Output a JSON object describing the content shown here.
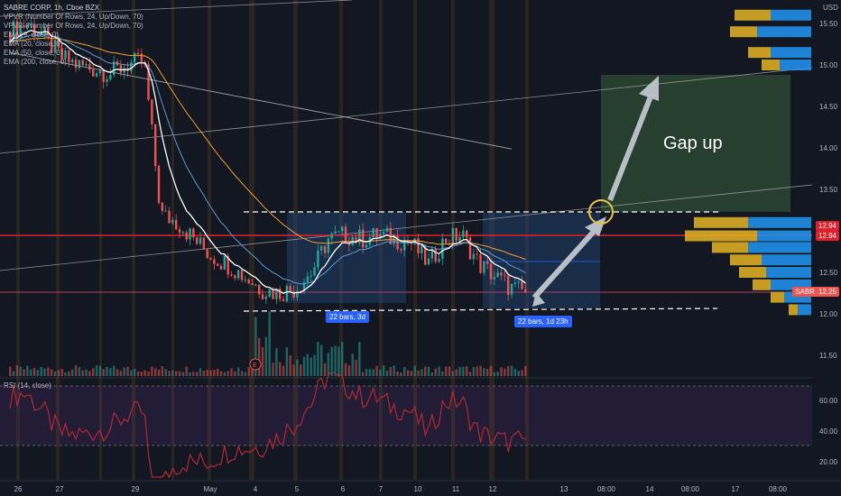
{
  "legend": {
    "symbol": "SABRE CORP, 1h, Cboe BZX",
    "vpvr1": "VPVR (Number Of Rows, 24, Up/Down, 70)",
    "vpvr2": "VPVR (Number Of Rows, 24, Up/Down, 70)",
    "ema9": "EMA (9, close, 0)",
    "ema20": "EMA (20, close, 0)",
    "ema50": "EMA (50, close, 0)",
    "ema200": "EMA (200, close, 0)"
  },
  "rsi_label": "RSI (14, close)",
  "annotation": "Gap up",
  "badges": {
    "b1": "22 bars, 3d",
    "b2": "22 bars, 1d 23h"
  },
  "price_tags": {
    "t1": "12.94",
    "t2": "12.94",
    "t3": "12.25",
    "t3_symbol": "SABR"
  },
  "colors": {
    "up": "#26a69a",
    "down": "#ef5350",
    "accent": "#2962ff",
    "ema9": "#ffffff",
    "ema20": "#5b9bd5",
    "ema50": "#f0a030",
    "ema200": "#9e9e9e",
    "rsi": "#b22833"
  },
  "chart_data": {
    "type": "candlestick",
    "y_ticks": [
      15.5,
      15.0,
      14.5,
      14.0,
      13.5,
      13.0,
      12.5,
      12.0,
      11.5
    ],
    "ylim": [
      11.5,
      15.5
    ],
    "rsi_ticks": [
      60.0,
      40.0,
      20.0
    ],
    "x_ticks": [
      "26",
      "27",
      "29",
      "May",
      "4",
      "5",
      "6",
      "7",
      "10",
      "11",
      "12",
      "13",
      "08:00",
      "14",
      "08:00",
      "17",
      "08:00"
    ],
    "close_path": [
      15.4,
      15.5,
      15.35,
      15.1,
      15.0,
      14.95,
      14.9,
      15.0,
      15.05,
      13.2,
      13.1,
      12.9,
      12.7,
      12.6,
      12.45,
      12.3,
      12.25,
      12.3,
      12.5,
      12.9,
      12.95,
      12.9,
      12.95,
      12.9,
      12.85,
      12.6,
      12.9,
      12.95,
      12.6,
      12.45,
      12.3,
      12.25
    ],
    "levels": {
      "range_high": 13.2,
      "range_low": 12.05,
      "red_line": 12.94,
      "pink_line": 12.25
    },
    "volume_profile": [
      {
        "price": 15.6,
        "up": 40,
        "down": 45
      },
      {
        "price": 15.4,
        "up": 30,
        "down": 60
      },
      {
        "price": 15.15,
        "up": 25,
        "down": 45
      },
      {
        "price": 15.0,
        "up": 20,
        "down": 35
      },
      {
        "price": 13.1,
        "up": 60,
        "down": 70
      },
      {
        "price": 12.94,
        "up": 80,
        "down": 60
      },
      {
        "price": 12.8,
        "up": 40,
        "down": 70
      },
      {
        "price": 12.65,
        "up": 35,
        "down": 55
      },
      {
        "price": 12.5,
        "up": 30,
        "down": 50
      },
      {
        "price": 12.35,
        "up": 20,
        "down": 45
      },
      {
        "price": 12.2,
        "up": 15,
        "down": 30
      },
      {
        "price": 12.05,
        "up": 10,
        "down": 15
      }
    ]
  }
}
